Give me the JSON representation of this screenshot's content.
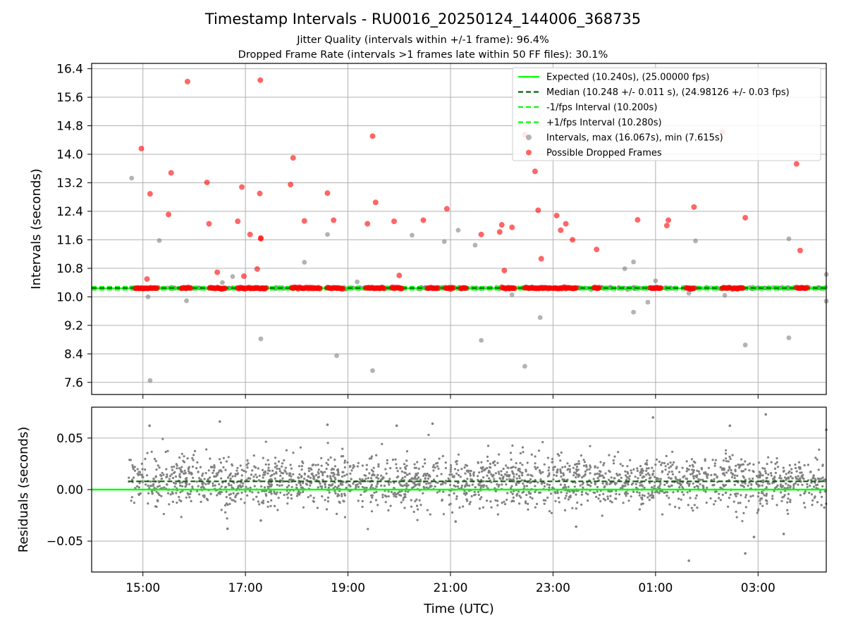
{
  "figure": {
    "title": "Timestamp Intervals - RU0016_20250124_144006_368735",
    "subtitle_1": "Jitter Quality (intervals within +/-1 frame): 96.4%",
    "subtitle_2": "Dropped Frame Rate (intervals >1 frames late within 50 FF files): 30.1%"
  },
  "chart_data": [
    {
      "type": "scatter",
      "title": "Timestamp Intervals - RU0016_20250124_144006_368735",
      "xlabel": "",
      "ylabel": "Intervals (seconds)",
      "x_unit": "hours since 00:00 UTC of first day",
      "xlim": [
        14.0,
        28.33
      ],
      "ylim": [
        7.26,
        16.55
      ],
      "yticks": [
        7.6,
        8.4,
        9.2,
        10.0,
        10.8,
        11.6,
        12.4,
        13.2,
        14.0,
        14.8,
        15.6,
        16.4
      ],
      "ytick_labels": [
        "7.6",
        "8.4",
        "9.2",
        "10.0",
        "10.8",
        "11.6",
        "12.4",
        "13.2",
        "14.0",
        "14.8",
        "15.6",
        "16.4"
      ],
      "grid": true,
      "legend_position": "top-right",
      "series": [
        {
          "name": "Expected (10.240s), (25.00000 fps)",
          "style": "solid-line",
          "color": "#00ff00",
          "y": 10.24
        },
        {
          "name": "Median (10.248 +/- 0.011 s), (24.98126 +/- 0.03 fps)",
          "style": "dashed-line",
          "color": "#006400",
          "y": 10.248
        },
        {
          "name": "-1/fps Interval (10.200s)",
          "style": "dashed-line",
          "color": "#00ff00",
          "y": 10.2
        },
        {
          "name": "+1/fps Interval (10.280s)",
          "style": "dashed-line",
          "color": "#00ff00",
          "y": 10.28
        },
        {
          "name": "Intervals, max (16.067s), min (7.615s)",
          "style": "markers",
          "color": "#808080",
          "points": [
            [
              14.78,
              13.33
            ],
            [
              15.32,
              11.58
            ],
            [
              15.1,
              10.0
            ],
            [
              15.14,
              7.65
            ],
            [
              15.85,
              9.89
            ],
            [
              16.55,
              10.4
            ],
            [
              16.75,
              10.57
            ],
            [
              17.3,
              8.82
            ],
            [
              18.15,
              10.97
            ],
            [
              18.6,
              11.75
            ],
            [
              18.78,
              8.35
            ],
            [
              19.18,
              10.42
            ],
            [
              19.48,
              7.93
            ],
            [
              20.25,
              11.73
            ],
            [
              20.88,
              11.55
            ],
            [
              21.15,
              11.87
            ],
            [
              21.48,
              11.45
            ],
            [
              21.6,
              8.78
            ],
            [
              22.2,
              10.06
            ],
            [
              22.45,
              8.05
            ],
            [
              22.75,
              9.42
            ],
            [
              24.4,
              10.79
            ],
            [
              24.57,
              10.98
            ],
            [
              24.57,
              9.57
            ],
            [
              24.85,
              9.85
            ],
            [
              25.0,
              10.45
            ],
            [
              25.65,
              10.1
            ],
            [
              25.78,
              11.57
            ],
            [
              26.35,
              10.04
            ],
            [
              26.75,
              8.65
            ],
            [
              27.6,
              11.63
            ],
            [
              27.6,
              8.85
            ],
            [
              28.33,
              10.63
            ],
            [
              28.33,
              9.88
            ],
            [
              15.85,
              10.26
            ],
            [
              16.5,
              10.25
            ],
            [
              17.6,
              10.27
            ],
            [
              19.05,
              10.26
            ],
            [
              20.5,
              10.25
            ],
            [
              21.9,
              10.27
            ],
            [
              23.5,
              10.26
            ],
            [
              25.3,
              10.25
            ],
            [
              26.9,
              10.27
            ],
            [
              27.7,
              10.26
            ]
          ],
          "note": "dense band of intervals near 10.24s from 14:43 to 04:20"
        },
        {
          "name": "Possible Dropped Frames",
          "style": "markers",
          "color": "#ff0000",
          "points": [
            [
              14.97,
              14.16
            ],
            [
              15.08,
              10.5
            ],
            [
              15.14,
              12.89
            ],
            [
              15.5,
              12.31
            ],
            [
              15.55,
              13.48
            ],
            [
              15.87,
              16.04
            ],
            [
              16.25,
              13.21
            ],
            [
              16.29,
              12.05
            ],
            [
              16.45,
              10.69
            ],
            [
              16.85,
              12.12
            ],
            [
              16.93,
              13.08
            ],
            [
              16.97,
              10.58
            ],
            [
              17.09,
              11.75
            ],
            [
              17.23,
              10.78
            ],
            [
              17.28,
              12.9
            ],
            [
              17.3,
              11.65
            ],
            [
              17.3,
              11.63
            ],
            [
              17.29,
              16.08
            ],
            [
              17.88,
              13.15
            ],
            [
              17.93,
              13.9
            ],
            [
              18.15,
              12.13
            ],
            [
              18.6,
              12.91
            ],
            [
              18.72,
              12.15
            ],
            [
              19.38,
              12.05
            ],
            [
              19.48,
              14.51
            ],
            [
              19.54,
              12.65
            ],
            [
              19.9,
              12.12
            ],
            [
              20.0,
              10.6
            ],
            [
              20.47,
              12.15
            ],
            [
              20.93,
              12.47
            ],
            [
              21.6,
              11.75
            ],
            [
              21.96,
              11.82
            ],
            [
              22.0,
              12.02
            ],
            [
              22.05,
              10.74
            ],
            [
              22.2,
              11.95
            ],
            [
              22.45,
              14.55
            ],
            [
              22.65,
              13.52
            ],
            [
              22.71,
              12.43
            ],
            [
              22.77,
              11.07
            ],
            [
              23.07,
              12.28
            ],
            [
              23.15,
              11.87
            ],
            [
              23.25,
              12.05
            ],
            [
              23.38,
              11.6
            ],
            [
              23.85,
              11.33
            ],
            [
              24.65,
              12.16
            ],
            [
              25.22,
              12.0
            ],
            [
              25.25,
              12.15
            ],
            [
              25.75,
              12.52
            ],
            [
              26.3,
              14.62
            ],
            [
              26.75,
              12.22
            ],
            [
              27.75,
              13.73
            ],
            [
              27.82,
              11.3
            ]
          ],
          "note": "many dropped-frame markers also lie on the 10.24s band"
        }
      ]
    },
    {
      "type": "scatter",
      "title": "",
      "xlabel": "Time (UTC)",
      "ylabel": "Residuals (seconds)",
      "xlim": [
        14.0,
        28.33
      ],
      "ylim": [
        -0.08,
        0.08
      ],
      "xtick_labels": [
        "15:00",
        "17:00",
        "19:00",
        "21:00",
        "23:00",
        "01:00",
        "03:00"
      ],
      "x_ticks_hours": [
        15,
        17,
        19,
        21,
        23,
        25,
        27
      ],
      "yticks": [
        -0.05,
        0.0,
        0.05
      ],
      "ytick_labels": [
        "−0.05",
        "0.00",
        "0.05"
      ],
      "grid": true,
      "series": [
        {
          "name": "Expected",
          "style": "solid-line",
          "color": "#00ff00",
          "y": 0.0
        },
        {
          "name": "Median",
          "style": "dashed-line",
          "color": "#006400",
          "y": 0.008
        },
        {
          "name": "Residuals",
          "style": "markers",
          "color": "#808080",
          "x_range": [
            14.72,
            28.33
          ],
          "center": 0.008,
          "spread": 0.012,
          "outliers": [
            [
              15.13,
              0.062
            ],
            [
              16.5,
              0.066
            ],
            [
              16.65,
              -0.038
            ],
            [
              17.3,
              -0.03
            ],
            [
              18.6,
              0.063
            ],
            [
              19.95,
              0.062
            ],
            [
              20.65,
              0.064
            ],
            [
              21.1,
              -0.031
            ],
            [
              23.45,
              -0.036
            ],
            [
              24.95,
              0.07
            ],
            [
              25.65,
              -0.069
            ],
            [
              26.45,
              0.062
            ],
            [
              26.75,
              -0.062
            ],
            [
              26.92,
              -0.046
            ],
            [
              27.15,
              0.073
            ],
            [
              27.5,
              -0.043
            ],
            [
              28.33,
              0.058
            ]
          ]
        }
      ]
    }
  ]
}
